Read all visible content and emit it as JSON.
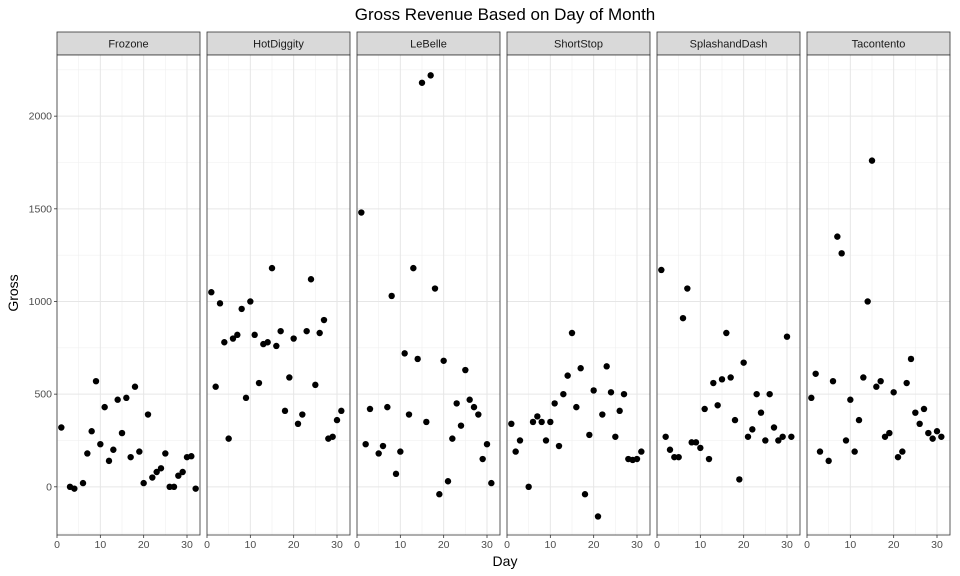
{
  "chart_data": {
    "type": "scatter",
    "title": "Gross Revenue Based on Day of Month",
    "xlabel": "Day",
    "ylabel": "Gross",
    "xlim": [
      0,
      33
    ],
    "ylim": [
      -260,
      2330
    ],
    "x_ticks": [
      0,
      10,
      20,
      30
    ],
    "y_ticks": [
      0,
      500,
      1000,
      1500,
      2000
    ],
    "grid": true,
    "legend": "none",
    "point_color": "#000000",
    "strip_color": "#d9d9d9",
    "panels": [
      {
        "name": "Frozone",
        "x": [
          1,
          3,
          4,
          6,
          7,
          8,
          9,
          10,
          11,
          12,
          13,
          14,
          15,
          16,
          17,
          18,
          19,
          20,
          21,
          22,
          23,
          24,
          25,
          26,
          27,
          28,
          29,
          30,
          31,
          32
        ],
        "y": [
          320,
          0,
          -10,
          20,
          180,
          300,
          570,
          230,
          430,
          140,
          200,
          470,
          290,
          480,
          160,
          540,
          190,
          20,
          390,
          50,
          80,
          100,
          180,
          0,
          0,
          60,
          80,
          160,
          165,
          -10
        ]
      },
      {
        "name": "HotDiggity",
        "x": [
          1,
          2,
          3,
          4,
          5,
          6,
          7,
          8,
          9,
          10,
          11,
          12,
          13,
          14,
          15,
          16,
          17,
          18,
          19,
          20,
          21,
          22,
          23,
          24,
          25,
          26,
          27,
          28,
          29,
          30,
          31
        ],
        "y": [
          1050,
          540,
          990,
          780,
          260,
          800,
          820,
          960,
          480,
          1000,
          820,
          560,
          770,
          780,
          1180,
          760,
          840,
          410,
          590,
          800,
          340,
          390,
          840,
          1120,
          550,
          830,
          900,
          260,
          270,
          360,
          410
        ]
      },
      {
        "name": "LeBelle",
        "x": [
          1,
          2,
          3,
          5,
          6,
          7,
          8,
          9,
          10,
          11,
          12,
          13,
          14,
          15,
          16,
          17,
          18,
          19,
          20,
          21,
          22,
          23,
          24,
          25,
          26,
          27,
          28,
          29,
          30,
          31
        ],
        "y": [
          1480,
          230,
          420,
          180,
          220,
          430,
          1030,
          70,
          190,
          720,
          390,
          1180,
          690,
          2180,
          350,
          2220,
          1070,
          -40,
          680,
          30,
          260,
          450,
          330,
          630,
          470,
          430,
          390,
          150,
          230,
          20
        ]
      },
      {
        "name": "ShortStop",
        "x": [
          1,
          2,
          3,
          5,
          6,
          7,
          8,
          9,
          10,
          11,
          12,
          13,
          14,
          15,
          16,
          17,
          18,
          19,
          20,
          21,
          22,
          23,
          24,
          25,
          26,
          27,
          28,
          29,
          30,
          31
        ],
        "y": [
          340,
          190,
          250,
          0,
          350,
          380,
          350,
          250,
          350,
          450,
          220,
          500,
          600,
          830,
          430,
          640,
          -40,
          280,
          520,
          -160,
          390,
          650,
          510,
          270,
          410,
          500,
          150,
          145,
          150,
          190
        ]
      },
      {
        "name": "SplashandDash",
        "x": [
          1,
          2,
          3,
          4,
          5,
          6,
          7,
          8,
          9,
          10,
          11,
          12,
          13,
          14,
          15,
          16,
          17,
          18,
          19,
          20,
          21,
          22,
          23,
          24,
          25,
          26,
          27,
          28,
          29,
          30,
          31
        ],
        "y": [
          1170,
          270,
          200,
          160,
          160,
          910,
          1070,
          240,
          240,
          210,
          420,
          150,
          560,
          440,
          580,
          830,
          590,
          360,
          40,
          670,
          270,
          310,
          500,
          400,
          250,
          500,
          320,
          250,
          270,
          810,
          270
        ]
      },
      {
        "name": "Tacontento",
        "x": [
          1,
          2,
          3,
          5,
          6,
          7,
          8,
          9,
          10,
          11,
          12,
          13,
          14,
          15,
          16,
          17,
          18,
          19,
          20,
          21,
          22,
          23,
          24,
          25,
          26,
          27,
          28,
          29,
          30,
          31
        ],
        "y": [
          480,
          610,
          190,
          140,
          570,
          1350,
          1260,
          250,
          470,
          190,
          360,
          590,
          1000,
          1760,
          540,
          570,
          270,
          290,
          510,
          160,
          190,
          560,
          690,
          400,
          340,
          420,
          290,
          260,
          300,
          270
        ]
      }
    ]
  }
}
